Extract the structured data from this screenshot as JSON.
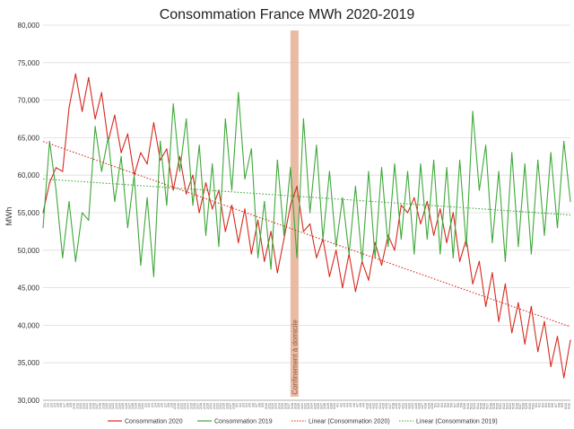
{
  "chart_data": {
    "type": "line",
    "title": "Consommation France MWh 2020-2019",
    "xlabel": "",
    "ylabel": "MWh",
    "ylim": [
      30000,
      80000
    ],
    "yticks": [
      {
        "value": 30000,
        "label": "30,000"
      },
      {
        "value": 35000,
        "label": "35,000"
      },
      {
        "value": 40000,
        "label": "40,000"
      },
      {
        "value": 45000,
        "label": "45,000"
      },
      {
        "value": 50000,
        "label": "50,000"
      },
      {
        "value": 55000,
        "label": "55,000"
      },
      {
        "value": 60000,
        "label": "60,000"
      },
      {
        "value": 65000,
        "label": "65,000"
      },
      {
        "value": 70000,
        "label": "70,000"
      },
      {
        "value": 75000,
        "label": "75,000"
      },
      {
        "value": 80000,
        "label": "80,000"
      }
    ],
    "grid": true,
    "x_day_range": [
      0,
      162
    ],
    "xtick_labels": [
      "1/1",
      "1/2",
      "1/3",
      "1/4",
      "1/5",
      "1/6",
      "1/7",
      "1/8",
      "1/9",
      "1/10",
      "1/11",
      "1/12",
      "1/13",
      "1/14",
      "1/15",
      "1/16",
      "1/17",
      "1/18",
      "1/19",
      "1/20",
      "1/21",
      "1/22",
      "1/23",
      "1/24",
      "1/25",
      "1/26",
      "1/27",
      "1/28",
      "1/29",
      "1/30",
      "1/31",
      "2/1",
      "2/2",
      "2/3",
      "2/4",
      "2/5",
      "2/6",
      "2/7",
      "2/8",
      "2/9",
      "2/10",
      "2/11",
      "2/12",
      "2/13",
      "2/14",
      "2/15",
      "2/16",
      "2/17",
      "2/18",
      "2/19",
      "2/20",
      "2/21",
      "2/22",
      "2/23",
      "2/24",
      "2/25",
      "2/26",
      "2/27",
      "2/28",
      "3/1",
      "3/2",
      "3/3",
      "3/4",
      "3/5",
      "3/6",
      "3/7",
      "3/8",
      "3/9",
      "3/10",
      "3/11",
      "3/12",
      "3/13",
      "3/14",
      "3/15",
      "3/16",
      "3/17",
      "3/18",
      "3/19",
      "3/20",
      "3/21",
      "3/22",
      "3/23",
      "3/24",
      "3/25",
      "3/26",
      "3/27",
      "3/28",
      "3/29",
      "3/30",
      "3/31",
      "4/1",
      "4/2",
      "4/3",
      "4/4",
      "4/5",
      "4/6",
      "4/7",
      "4/8",
      "4/9",
      "4/10",
      "4/11",
      "4/12",
      "4/13",
      "4/14",
      "4/15",
      "4/16",
      "4/17",
      "4/18",
      "4/19",
      "4/20",
      "4/21",
      "4/22",
      "4/23",
      "4/24",
      "4/25",
      "4/26",
      "4/27",
      "4/28",
      "4/29",
      "4/30",
      "5/1",
      "5/2",
      "5/3",
      "5/4",
      "5/5",
      "5/6",
      "5/7",
      "5/8",
      "5/9",
      "5/10",
      "5/11",
      "5/12",
      "5/13",
      "5/14",
      "5/15",
      "5/16",
      "5/17",
      "5/18",
      "5/19",
      "5/20",
      "5/21",
      "5/22",
      "5/23",
      "5/24",
      "5/25",
      "5/26",
      "5/27",
      "5/28",
      "5/29",
      "5/30",
      "5/31",
      "6/1",
      "6/2",
      "6/3",
      "6/4",
      "6/5",
      "6/6",
      "6/7",
      "6/8",
      "6/9",
      "6/10",
      "6/11"
    ],
    "annotation": {
      "text": "Confinement à domicile",
      "day_start": 76,
      "day_end": 78.5,
      "color": "#e8b49a"
    },
    "series": [
      {
        "name": "Consommation 2020",
        "color": "#d42a1e",
        "kind": "line",
        "x": [
          0,
          2,
          4,
          6,
          8,
          10,
          12,
          14,
          16,
          18,
          20,
          22,
          24,
          26,
          28,
          30,
          32,
          34,
          36,
          38,
          40,
          42,
          44,
          46,
          48,
          50,
          52,
          54,
          56,
          58,
          60,
          62,
          64,
          66,
          68,
          70,
          72,
          74,
          76,
          78,
          80,
          82,
          84,
          86,
          88,
          90,
          92,
          94,
          96,
          98,
          100,
          102,
          104,
          106,
          108,
          110,
          112,
          114,
          116,
          118,
          120,
          122,
          124,
          126,
          128,
          130,
          132,
          134,
          136,
          138,
          140,
          142,
          144,
          146,
          148,
          150,
          152,
          154,
          156,
          158,
          160,
          162
        ],
        "y": [
          55000,
          59000,
          61000,
          60500,
          69000,
          73500,
          68500,
          73000,
          67500,
          71000,
          64500,
          68000,
          63000,
          65500,
          60000,
          63000,
          61500,
          67000,
          62000,
          63500,
          58000,
          62500,
          57500,
          60000,
          55000,
          59000,
          55500,
          58000,
          52500,
          56000,
          51000,
          55500,
          49500,
          54000,
          48500,
          52500,
          47000,
          51500,
          56000,
          58500,
          52500,
          53500,
          49000,
          51500,
          46500,
          50000,
          45000,
          49500,
          44500,
          48500,
          46000,
          51000,
          48000,
          52000,
          50000,
          56000,
          55000,
          57000,
          53500,
          56500,
          52000,
          55500,
          51000,
          55000,
          48500,
          51500,
          45500,
          48500,
          42500,
          47000,
          40500,
          45500,
          39000,
          43000,
          37500,
          42500,
          36500,
          40500,
          34500,
          38500,
          33000,
          38000
        ]
      },
      {
        "name": "Consommation  2019",
        "color": "#3fa83a",
        "kind": "line",
        "x": [
          0,
          2,
          4,
          6,
          8,
          10,
          12,
          14,
          16,
          18,
          20,
          22,
          24,
          26,
          28,
          30,
          32,
          34,
          36,
          38,
          40,
          42,
          44,
          46,
          48,
          50,
          52,
          54,
          56,
          58,
          60,
          62,
          64,
          66,
          68,
          70,
          72,
          74,
          76,
          78,
          80,
          82,
          84,
          86,
          88,
          90,
          92,
          94,
          96,
          98,
          100,
          102,
          104,
          106,
          108,
          110,
          112,
          114,
          116,
          118,
          120,
          122,
          124,
          126,
          128,
          130,
          132,
          134,
          136,
          138,
          140,
          142,
          144,
          146,
          148,
          150,
          152,
          154,
          156,
          158,
          160,
          162
        ],
        "y": [
          53000,
          64500,
          58000,
          49000,
          56500,
          48500,
          55000,
          54000,
          66500,
          60500,
          65000,
          56500,
          62500,
          53000,
          60000,
          48000,
          57000,
          46500,
          64500,
          56000,
          69500,
          60500,
          67500,
          56000,
          64000,
          52000,
          61500,
          50500,
          67500,
          58000,
          71000,
          59500,
          63500,
          49000,
          56500,
          47500,
          62000,
          52000,
          61000,
          49000,
          67500,
          55000,
          64000,
          51500,
          60500,
          50500,
          57000,
          49500,
          58500,
          48500,
          60500,
          49000,
          61000,
          50500,
          61500,
          51500,
          60500,
          49500,
          61500,
          51500,
          62000,
          49500,
          61000,
          49000,
          62000,
          50500,
          68500,
          58000,
          64000,
          51000,
          60500,
          48500,
          63000,
          50500,
          61500,
          49500,
          62000,
          52000,
          63000,
          53000,
          64500,
          56500
        ]
      },
      {
        "name": "Linear (Consommation 2020)",
        "color": "#d42a1e",
        "kind": "trend",
        "x": [
          0,
          162
        ],
        "y": [
          64500,
          39800
        ]
      },
      {
        "name": "Linear (Consommation  2019)",
        "color": "#3fa83a",
        "kind": "trend",
        "x": [
          0,
          162
        ],
        "y": [
          59500,
          54700
        ]
      }
    ]
  }
}
